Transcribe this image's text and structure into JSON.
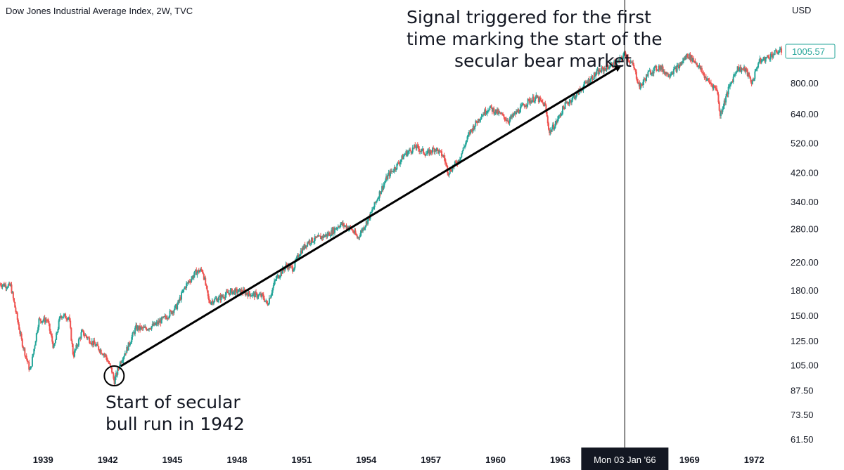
{
  "header": {
    "title": "Dow Jones Industrial Average Index, 2W, TVC"
  },
  "annotations": {
    "top_lines": [
      "Signal triggered for the first",
      "time marking the start of the",
      "secular bear market"
    ],
    "bottom_lines": [
      "Start of secular",
      "bull run in 1942"
    ]
  },
  "crosshair": {
    "date_label": "Mon 03 Jan '66",
    "date_value": 1966.0
  },
  "last_price": {
    "label": "1005.57",
    "value": 1005.57
  },
  "colors": {
    "up": "#26a69a",
    "down": "#ef5350",
    "text": "#131722",
    "line": "#000000",
    "price_box": "#26a69a"
  },
  "chart_data": {
    "type": "candlestick",
    "title": "Dow Jones Industrial Average Index, 2W, TVC",
    "ylabel": "USD",
    "yscale": "log",
    "ylim": [
      57,
      1250
    ],
    "xlim": [
      1937.0,
      1973.3
    ],
    "ytick_labels": [
      "1005.57",
      "800.00",
      "640.00",
      "520.00",
      "420.00",
      "340.00",
      "280.00",
      "220.00",
      "180.00",
      "150.00",
      "125.00",
      "105.00",
      "87.50",
      "73.50",
      "61.50"
    ],
    "ytick_values": [
      1005.57,
      800,
      640,
      520,
      420,
      340,
      280,
      220,
      180,
      150,
      125,
      105,
      87.5,
      73.5,
      61.5
    ],
    "xtick_labels": [
      "1939",
      "1942",
      "1945",
      "1948",
      "1951",
      "1954",
      "1957",
      "1960",
      "1963",
      "1969",
      "1972"
    ],
    "xtick_values": [
      1939,
      1942,
      1945,
      1948,
      1951,
      1954,
      1957,
      1960,
      1963,
      1969,
      1972
    ],
    "series": [
      {
        "approx_close_path": [
          [
            1937.0,
            188
          ],
          [
            1937.5,
            185
          ],
          [
            1938.0,
            125
          ],
          [
            1938.4,
            100
          ],
          [
            1938.8,
            145
          ],
          [
            1939.2,
            145
          ],
          [
            1939.5,
            118
          ],
          [
            1939.8,
            150
          ],
          [
            1940.2,
            148
          ],
          [
            1940.4,
            112
          ],
          [
            1940.8,
            133
          ],
          [
            1941.2,
            125
          ],
          [
            1941.6,
            118
          ],
          [
            1941.9,
            112
          ],
          [
            1942.2,
            100
          ],
          [
            1942.3,
            93
          ],
          [
            1942.6,
            108
          ],
          [
            1942.9,
            118
          ],
          [
            1943.3,
            137
          ],
          [
            1943.7,
            136
          ],
          [
            1944.2,
            140
          ],
          [
            1944.7,
            148
          ],
          [
            1945.2,
            160
          ],
          [
            1945.6,
            185
          ],
          [
            1946.1,
            205
          ],
          [
            1946.4,
            208
          ],
          [
            1946.7,
            165
          ],
          [
            1947.2,
            170
          ],
          [
            1947.7,
            178
          ],
          [
            1948.2,
            178
          ],
          [
            1948.6,
            175
          ],
          [
            1949.2,
            172
          ],
          [
            1949.4,
            162
          ],
          [
            1949.8,
            195
          ],
          [
            1950.3,
            215
          ],
          [
            1950.6,
            210
          ],
          [
            1950.9,
            235
          ],
          [
            1951.3,
            255
          ],
          [
            1951.8,
            262
          ],
          [
            1952.3,
            270
          ],
          [
            1952.8,
            290
          ],
          [
            1953.3,
            280
          ],
          [
            1953.6,
            262
          ],
          [
            1954.2,
            310
          ],
          [
            1954.6,
            360
          ],
          [
            1955.0,
            410
          ],
          [
            1955.4,
            440
          ],
          [
            1955.8,
            480
          ],
          [
            1956.3,
            505
          ],
          [
            1956.8,
            480
          ],
          [
            1957.2,
            500
          ],
          [
            1957.6,
            470
          ],
          [
            1957.8,
            420
          ],
          [
            1958.3,
            460
          ],
          [
            1958.8,
            560
          ],
          [
            1959.3,
            630
          ],
          [
            1959.7,
            670
          ],
          [
            1960.2,
            640
          ],
          [
            1960.6,
            610
          ],
          [
            1961.0,
            650
          ],
          [
            1961.5,
            700
          ],
          [
            1961.9,
            720
          ],
          [
            1962.3,
            680
          ],
          [
            1962.5,
            560
          ],
          [
            1962.8,
            600
          ],
          [
            1963.2,
            680
          ],
          [
            1963.7,
            730
          ],
          [
            1964.2,
            800
          ],
          [
            1964.7,
            860
          ],
          [
            1965.2,
            900
          ],
          [
            1965.7,
            930
          ],
          [
            1966.0,
            990
          ],
          [
            1966.4,
            900
          ],
          [
            1966.7,
            775
          ],
          [
            1967.1,
            860
          ],
          [
            1967.6,
            900
          ],
          [
            1968.0,
            850
          ],
          [
            1968.5,
            900
          ],
          [
            1968.9,
            980
          ],
          [
            1969.3,
            930
          ],
          [
            1969.8,
            820
          ],
          [
            1970.3,
            760
          ],
          [
            1970.4,
            630
          ],
          [
            1970.8,
            760
          ],
          [
            1971.2,
            890
          ],
          [
            1971.6,
            880
          ],
          [
            1971.9,
            800
          ],
          [
            1972.2,
            930
          ],
          [
            1972.6,
            960
          ],
          [
            1973.1,
            1005
          ]
        ]
      }
    ],
    "trend_line": {
      "from": [
        1942.6,
        104
      ],
      "to": [
        1965.8,
        905
      ]
    },
    "marker_circle": {
      "x": 1942.3,
      "y": 97
    }
  }
}
